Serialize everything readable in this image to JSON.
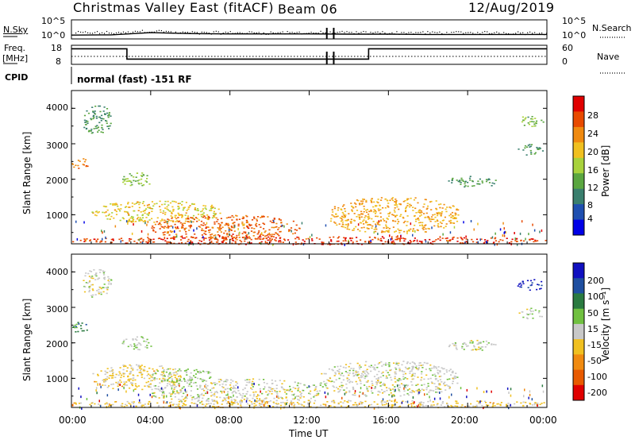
{
  "header": {
    "title": "Christmas Valley East (fitACF)",
    "beam": "Beam 06",
    "date": "12/Aug/2019"
  },
  "top_panel": {
    "left_label": "N.Sky",
    "right_label": "N.Search",
    "left_ticks": [
      "10^5",
      "10^0"
    ],
    "right_ticks": [
      "10^5",
      "10^0"
    ]
  },
  "freq_panel": {
    "left_label_1": "Freq.",
    "left_label_2": "[MHz]",
    "right_label": "Nave",
    "left_ticks": [
      "18",
      "8"
    ],
    "right_ticks": [
      "60",
      "0"
    ]
  },
  "cpid": {
    "label": "CPID",
    "value": "normal (fast) -151 RF"
  },
  "x_axis": {
    "label": "Time UT",
    "ticks": [
      "00:00",
      "04:00",
      "08:00",
      "12:00",
      "16:00",
      "20:00",
      "00:00"
    ]
  },
  "power_panel": {
    "ylabel": "Slant Range [km]",
    "yticks": [
      "4000",
      "3000",
      "2000",
      "1000"
    ],
    "colorbar_label": "Power [dB]",
    "colorbar_ticks": [
      "28",
      "24",
      "20",
      "16",
      "12",
      "8",
      "4"
    ]
  },
  "velocity_panel": {
    "ylabel": "Slant Range [km]",
    "yticks": [
      "4000",
      "3000",
      "2000",
      "1000"
    ],
    "colorbar_label": "Velocity [m s⁻¹]",
    "colorbar_ticks": [
      "200",
      "100",
      "50",
      "15",
      "-15",
      "-50",
      "-100",
      "-200"
    ]
  },
  "colors": {
    "power_scale": [
      "#0000e6",
      "#1f4fb0",
      "#3a7f6e",
      "#5aa640",
      "#a8d23c",
      "#f0c020",
      "#f08a10",
      "#e84a00",
      "#e00000"
    ],
    "velocity_scale": [
      "#1010c0",
      "#1f4fa0",
      "#2a7a40",
      "#70c040",
      "#c8c8c8",
      "#f0c020",
      "#f08a10",
      "#e85a00",
      "#e00000"
    ]
  },
  "chart_data": [
    {
      "type": "line",
      "title": "Christmas Valley East (fitACF)",
      "xlabel": "",
      "ylabel": "N.Sky",
      "x_range_hours": [
        0,
        24
      ],
      "yscale": "log",
      "ylim": [
        1,
        100000
      ],
      "x": [
        0,
        2,
        4,
        6,
        8,
        10,
        12,
        14,
        16,
        18,
        20,
        22,
        24
      ],
      "series": [
        {
          "name": "N.Sky",
          "values": [
            5,
            6,
            30,
            15,
            12,
            12,
            12,
            10,
            10,
            8,
            8,
            8,
            8
          ]
        }
      ]
    },
    {
      "type": "line",
      "xlabel": "",
      "ylabel": "Freq. [MHz]",
      "x_range_hours": [
        0,
        24
      ],
      "ylim": [
        8,
        18
      ],
      "x": [
        0,
        2.8,
        2.8,
        15,
        15,
        24
      ],
      "series": [
        {
          "name": "Freq.",
          "values": [
            16.8,
            16.8,
            10.3,
            10.3,
            16.8,
            16.8
          ]
        }
      ]
    },
    {
      "type": "heatmap",
      "ylabel": "Slant Range [km]",
      "xlabel": "",
      "x_range_hours": [
        0,
        24
      ],
      "ylim": [
        180,
        4500
      ],
      "colorbar": {
        "label": "Power [dB]",
        "range": [
          0,
          30
        ]
      },
      "regions": [
        {
          "t": [
            0.5,
            2.0
          ],
          "r": [
            3300,
            4100
          ],
          "value": 10
        },
        {
          "t": [
            0.0,
            0.8
          ],
          "r": [
            2300,
            2600
          ],
          "value": 22
        },
        {
          "t": [
            2.5,
            4.0
          ],
          "r": [
            1800,
            2200
          ],
          "value": 14
        },
        {
          "t": [
            1.0,
            7.5
          ],
          "r": [
            800,
            1400
          ],
          "value": 18
        },
        {
          "t": [
            4.0,
            11.5
          ],
          "r": [
            300,
            1000
          ],
          "value": 24
        },
        {
          "t": [
            0.0,
            24.0
          ],
          "r": [
            180,
            400
          ],
          "value": 26
        },
        {
          "t": [
            13.0,
            19.5
          ],
          "r": [
            500,
            1500
          ],
          "value": 20
        },
        {
          "t": [
            19.0,
            21.5
          ],
          "r": [
            1800,
            2100
          ],
          "value": 10
        },
        {
          "t": [
            22.5,
            23.8
          ],
          "r": [
            3500,
            3800
          ],
          "value": 12
        },
        {
          "t": [
            22.5,
            23.8
          ],
          "r": [
            2700,
            3000
          ],
          "value": 10
        }
      ]
    },
    {
      "type": "heatmap",
      "ylabel": "Slant Range [km]",
      "xlabel": "Time UT",
      "x_range_hours": [
        0,
        24
      ],
      "ylim": [
        180,
        4500
      ],
      "colorbar": {
        "label": "Velocity [m s⁻¹]",
        "range": [
          -250,
          250
        ]
      },
      "regions": [
        {
          "t": [
            0.5,
            2.0
          ],
          "r": [
            3300,
            4100
          ],
          "value": 0
        },
        {
          "t": [
            0.0,
            0.8
          ],
          "r": [
            2300,
            2600
          ],
          "value": 120
        },
        {
          "t": [
            2.5,
            4.0
          ],
          "r": [
            1800,
            2200
          ],
          "value": 30
        },
        {
          "t": [
            1.0,
            5.5
          ],
          "r": [
            700,
            1400
          ],
          "value": -40
        },
        {
          "t": [
            4.0,
            7.0
          ],
          "r": [
            900,
            1300
          ],
          "value": 30
        },
        {
          "t": [
            4.0,
            12.5
          ],
          "r": [
            300,
            1000
          ],
          "value": 0
        },
        {
          "t": [
            0.0,
            24.0
          ],
          "r": [
            180,
            400
          ],
          "value": -40
        },
        {
          "t": [
            12.5,
            19.5
          ],
          "r": [
            500,
            1500
          ],
          "value": 0
        },
        {
          "t": [
            19.0,
            21.5
          ],
          "r": [
            1800,
            2100
          ],
          "value": 0
        },
        {
          "t": [
            22.5,
            23.8
          ],
          "r": [
            3500,
            3800
          ],
          "value": 220
        },
        {
          "t": [
            22.5,
            23.8
          ],
          "r": [
            2700,
            3000
          ],
          "value": 0
        }
      ]
    }
  ]
}
